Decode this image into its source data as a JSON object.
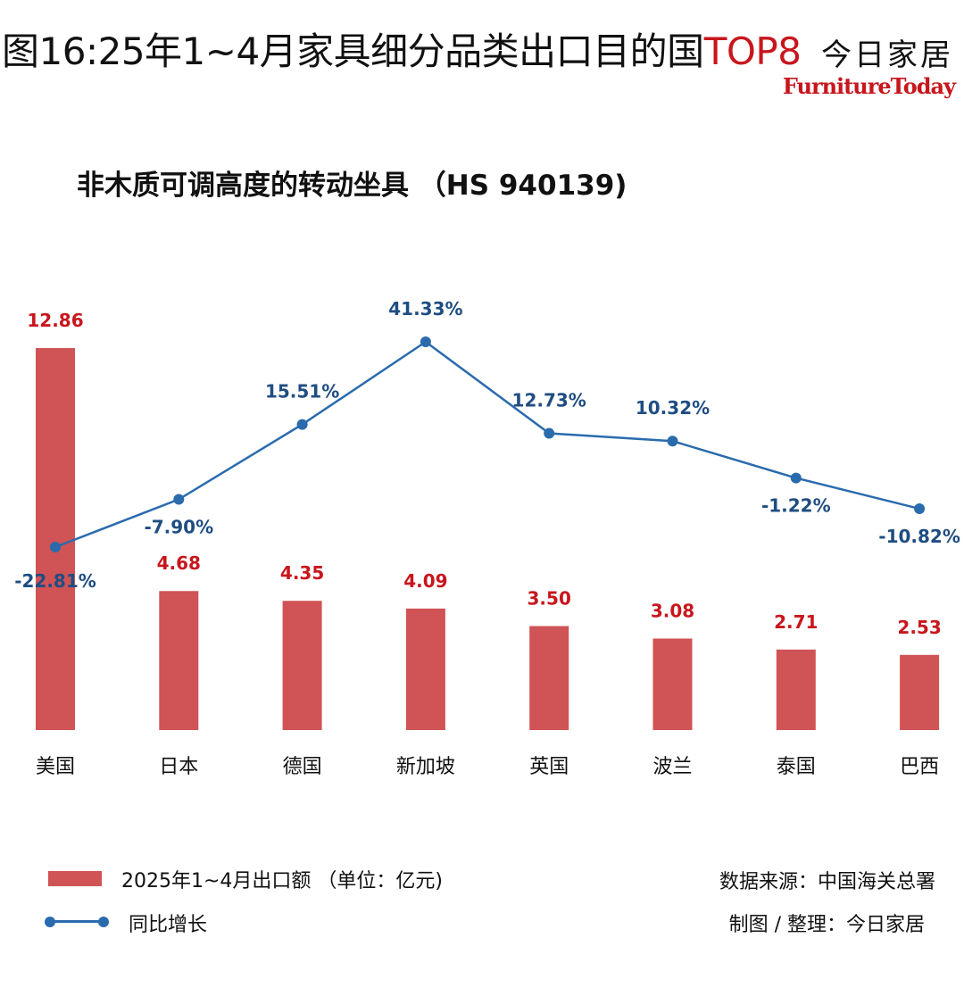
{
  "header": {
    "title_main": "图16:25年1~4月家具细分品类出口目的国",
    "title_highlight": "TOP8",
    "brand_cn": "今日家居",
    "brand_en": "FurnitureToday"
  },
  "colors": {
    "bar": "#d05355",
    "line": "#2a6bad",
    "bar_label": "#c8161d",
    "line_label": "#1f4d82"
  },
  "chart_data": {
    "type": "bar",
    "title": "非木质可调高度的转动坐具 （HS 940139)",
    "categories": [
      "美国",
      "日本",
      "德国",
      "新加坡",
      "英国",
      "波兰",
      "泰国",
      "巴西"
    ],
    "series": [
      {
        "name": "2025年1~4月出口额 （单位：亿元)",
        "kind": "bar",
        "values": [
          12.86,
          4.68,
          4.35,
          4.09,
          3.5,
          3.08,
          2.71,
          2.53
        ],
        "labels": [
          "12.86",
          "4.68",
          "4.35",
          "4.09",
          "3.50",
          "3.08",
          "2.71",
          "2.53"
        ]
      },
      {
        "name": "同比增长",
        "kind": "line",
        "values": [
          -22.81,
          -7.9,
          15.51,
          41.33,
          12.73,
          10.32,
          -1.22,
          -10.82
        ],
        "labels": [
          "-22.81%",
          "-7.90%",
          "15.51%",
          "41.33%",
          "12.73%",
          "10.32%",
          "-1.22%",
          "-10.82%"
        ]
      }
    ],
    "legend_position": "bottom-left",
    "grid": false
  },
  "notes": {
    "source": "数据来源：中国海关总署",
    "producer": "制图 / 整理：今日家居"
  }
}
